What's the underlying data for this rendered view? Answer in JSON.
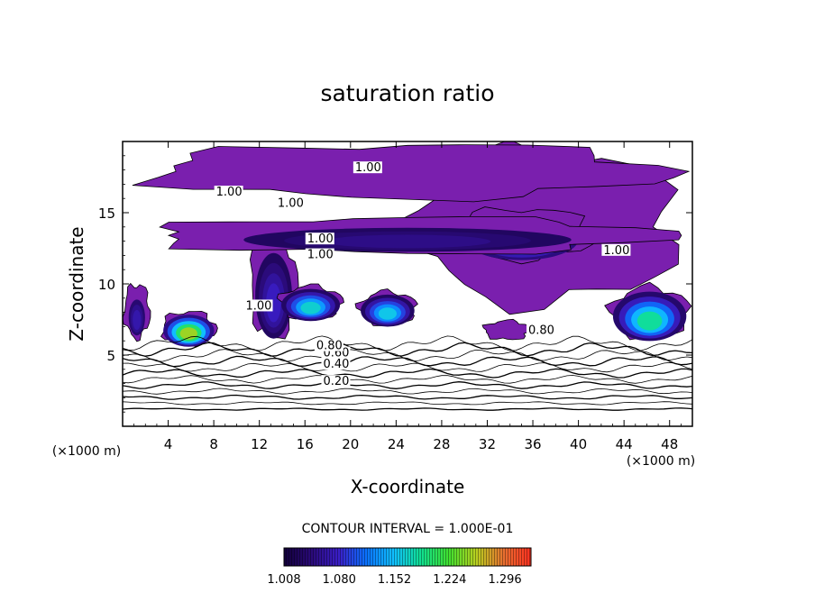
{
  "chart_data": {
    "type": "heatmap",
    "title": "saturation ratio",
    "xlabel": "X-coordinate",
    "ylabel": "Z-coordinate",
    "x_unit": "(×1000 m)",
    "y_unit": "(×1000 m)",
    "xlim": [
      0,
      50
    ],
    "ylim": [
      0,
      20
    ],
    "x_ticks": [
      "4",
      "8",
      "12",
      "16",
      "20",
      "24",
      "28",
      "32",
      "36",
      "40",
      "44",
      "48"
    ],
    "x_tick_values": [
      4,
      8,
      12,
      16,
      20,
      24,
      28,
      32,
      36,
      40,
      44,
      48
    ],
    "y_ticks": [
      "5",
      "10",
      "15"
    ],
    "y_tick_values": [
      5,
      10,
      15
    ],
    "contour_interval_text": "CONTOUR INTERVAL = 1.000E-01",
    "contour_interval": 0.1,
    "contour_labels": [
      {
        "text": "0.20",
        "x": 17.6,
        "z": 2.9,
        "value": 0.2
      },
      {
        "text": "0.40",
        "x": 17.6,
        "z": 4.1,
        "value": 0.4
      },
      {
        "text": "0.60",
        "x": 17.6,
        "z": 4.9,
        "value": 0.6
      },
      {
        "text": "0.80",
        "x": 17.0,
        "z": 5.4,
        "value": 0.8
      },
      {
        "text": "0.80",
        "x": 35.6,
        "z": 6.5,
        "value": 0.8
      },
      {
        "text": "1.00",
        "x": 8.2,
        "z": 16.2,
        "value": 1.0
      },
      {
        "text": "1.00",
        "x": 13.6,
        "z": 15.4,
        "value": 1.0
      },
      {
        "text": "1.00",
        "x": 16.2,
        "z": 12.9,
        "value": 1.0
      },
      {
        "text": "1.00",
        "x": 16.2,
        "z": 11.8,
        "value": 1.0
      },
      {
        "text": "1.00",
        "x": 20.4,
        "z": 17.9,
        "value": 1.0
      },
      {
        "text": "1.00",
        "x": 42.2,
        "z": 12.1,
        "value": 1.0
      },
      {
        "text": "1.00",
        "x": 10.8,
        "z": 8.2,
        "value": 1.0
      }
    ],
    "colorbar": {
      "min": 1.008,
      "max": 1.33,
      "tick_labels": [
        "1.008",
        "1.080",
        "1.152",
        "1.224",
        "1.296"
      ],
      "tick_values": [
        1.008,
        1.08,
        1.152,
        1.224,
        1.296
      ],
      "colors": [
        "#12003a",
        "#2a0a78",
        "#3a1ec8",
        "#0a72ff",
        "#10c0ff",
        "#10e090",
        "#40e030",
        "#b8d020",
        "#e87030",
        "#ff3020"
      ]
    },
    "supersaturated_regions": [
      {
        "x": [
          0,
          2.5
        ],
        "z": [
          6.0,
          10.2
        ],
        "peak": 1.08
      },
      {
        "x": [
          3.2,
          8.4
        ],
        "z": [
          5.6,
          8.2
        ],
        "peak": 1.3
      },
      {
        "x": [
          11.0,
          15.5
        ],
        "z": [
          5.8,
          14.0
        ],
        "peak": 1.09
      },
      {
        "x": [
          13.5,
          19.5
        ],
        "z": [
          7.4,
          10.0
        ],
        "peak": 1.2
      },
      {
        "x": [
          20.5,
          26.0
        ],
        "z": [
          7.0,
          9.6
        ],
        "peak": 1.19
      },
      {
        "x": [
          24.0,
          50.0
        ],
        "z": [
          8.0,
          20.0
        ],
        "peak": 1.03
      },
      {
        "x": [
          28.0,
          42.0
        ],
        "z": [
          11.5,
          15.5
        ],
        "peak": 1.14
      },
      {
        "x": [
          0,
          50.0
        ],
        "z": [
          15.8,
          20.0
        ],
        "peak": 1.03
      },
      {
        "x": [
          0,
          50.0
        ],
        "z": [
          12.0,
          14.8
        ],
        "peak": 1.06
      },
      {
        "x": [
          31.5,
          36.0
        ],
        "z": [
          6.0,
          7.5
        ],
        "peak": 1.01
      },
      {
        "x": [
          42.5,
          50.0
        ],
        "z": [
          6.0,
          10.0
        ],
        "peak": 1.22
      }
    ],
    "grid": false
  }
}
